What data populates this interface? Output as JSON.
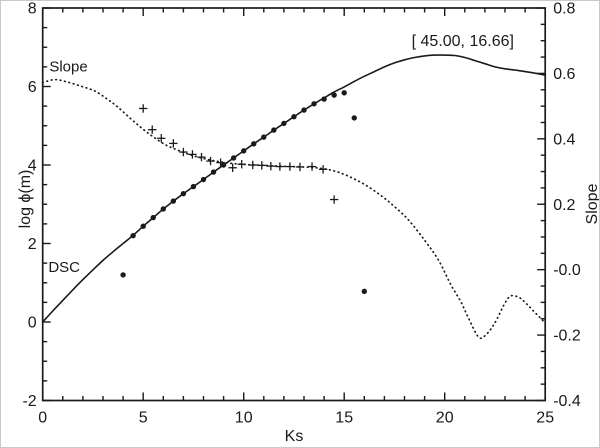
{
  "figure": {
    "background": "#ffffff",
    "border_color": "#c9c9c9",
    "ink_color": "#1a1a1a"
  },
  "chart_data": {
    "type": "line",
    "title": "",
    "xlabel": "Ks",
    "ylabel_left": "log ϕ(m)",
    "ylabel_right": "Slope",
    "grid": false,
    "legend": "none (in-plot text labels)",
    "x_axis": {
      "min": 0,
      "max": 25,
      "minor_step": 1,
      "major_tick_values": [
        0,
        5,
        10,
        15,
        20,
        25
      ],
      "major_tick_labels": [
        "0",
        "5",
        "10",
        "15",
        "20",
        "25"
      ]
    },
    "y_axis_left": {
      "min": -2,
      "max": 8,
      "minor_step": 0.5,
      "major_tick_values": [
        8,
        6,
        4,
        2,
        0,
        -2
      ],
      "major_tick_labels": [
        "8",
        "6",
        "4",
        "2",
        "0",
        "-2"
      ]
    },
    "y_axis_right": {
      "min": -0.4,
      "max": 0.8,
      "minor_step": 0.05,
      "major_tick_values": [
        0.8,
        0.6,
        0.4,
        0.2,
        0.0,
        -0.2,
        -0.4
      ],
      "major_tick_labels": [
        "0.8",
        "0.6",
        "0.4",
        "0.2",
        "-0.0",
        "-0.2",
        "-0.4"
      ]
    },
    "series": [
      {
        "name": "DSC curve",
        "style": "solid-line",
        "axis": "left",
        "points": [
          [
            0,
            0
          ],
          [
            0.5,
            0.28
          ],
          [
            1,
            0.55
          ],
          [
            1.5,
            0.82
          ],
          [
            2,
            1.08
          ],
          [
            2.5,
            1.33
          ],
          [
            3,
            1.57
          ],
          [
            3.5,
            1.79
          ],
          [
            4,
            2.0
          ],
          [
            4.5,
            2.21
          ],
          [
            5,
            2.44
          ],
          [
            5.5,
            2.66
          ],
          [
            6,
            2.88
          ],
          [
            6.5,
            3.08
          ],
          [
            7,
            3.27
          ],
          [
            7.5,
            3.45
          ],
          [
            8,
            3.63
          ],
          [
            8.5,
            3.82
          ],
          [
            9,
            4.0
          ],
          [
            9.5,
            4.18
          ],
          [
            10,
            4.36
          ],
          [
            10.5,
            4.54
          ],
          [
            11,
            4.71
          ],
          [
            11.5,
            4.89
          ],
          [
            12,
            5.06
          ],
          [
            12.5,
            5.23
          ],
          [
            13,
            5.4
          ],
          [
            13.5,
            5.56
          ],
          [
            14,
            5.71
          ],
          [
            14.5,
            5.86
          ],
          [
            15,
            5.99
          ],
          [
            15.5,
            6.13
          ],
          [
            16,
            6.26
          ],
          [
            16.5,
            6.38
          ],
          [
            17,
            6.5
          ],
          [
            17.5,
            6.6
          ],
          [
            18,
            6.68
          ],
          [
            18.5,
            6.74
          ],
          [
            19,
            6.78
          ],
          [
            19.5,
            6.8
          ],
          [
            20,
            6.8
          ],
          [
            20.5,
            6.79
          ],
          [
            21,
            6.74
          ],
          [
            21.5,
            6.66
          ],
          [
            22,
            6.58
          ],
          [
            22.5,
            6.5
          ],
          [
            23,
            6.45
          ],
          [
            23.5,
            6.42
          ],
          [
            24,
            6.38
          ],
          [
            24.5,
            6.34
          ],
          [
            25,
            6.29
          ]
        ]
      },
      {
        "name": "Slope curve",
        "style": "dotted-line",
        "axis": "right",
        "points": [
          [
            0,
            0.572
          ],
          [
            0.6,
            0.581
          ],
          [
            1.2,
            0.574
          ],
          [
            1.9,
            0.561
          ],
          [
            2.6,
            0.546
          ],
          [
            3.2,
            0.522
          ],
          [
            3.7,
            0.499
          ],
          [
            4.3,
            0.466
          ],
          [
            4.9,
            0.434
          ],
          [
            5.5,
            0.406
          ],
          [
            6.1,
            0.382
          ],
          [
            6.7,
            0.366
          ],
          [
            7.3,
            0.352
          ],
          [
            8,
            0.34
          ],
          [
            8.7,
            0.331
          ],
          [
            9.4,
            0.325
          ],
          [
            10.2,
            0.321
          ],
          [
            11,
            0.319
          ],
          [
            12,
            0.316
          ],
          [
            13,
            0.314
          ],
          [
            13.8,
            0.31
          ],
          [
            14.5,
            0.302
          ],
          [
            15.2,
            0.286
          ],
          [
            16,
            0.261
          ],
          [
            16.8,
            0.228
          ],
          [
            17.5,
            0.193
          ],
          [
            18.2,
            0.152
          ],
          [
            19,
            0.09
          ],
          [
            19.7,
            0.028
          ],
          [
            20.3,
            -0.045
          ],
          [
            20.8,
            -0.098
          ],
          [
            21.2,
            -0.15
          ],
          [
            21.7,
            -0.207
          ],
          [
            22.1,
            -0.196
          ],
          [
            22.5,
            -0.162
          ],
          [
            23,
            -0.102
          ],
          [
            23.3,
            -0.08
          ],
          [
            23.7,
            -0.085
          ],
          [
            24,
            -0.1
          ],
          [
            24.4,
            -0.125
          ],
          [
            25,
            -0.163
          ]
        ]
      },
      {
        "name": "slope estimate markers",
        "style": "plus-markers",
        "axis": "left",
        "points": [
          [
            5,
            5.44
          ],
          [
            5.45,
            4.9
          ],
          [
            5.9,
            4.68
          ],
          [
            6.5,
            4.55
          ],
          [
            7,
            4.33
          ],
          [
            7.45,
            4.27
          ],
          [
            7.9,
            4.2
          ],
          [
            8.35,
            4.1
          ],
          [
            8.85,
            4.06
          ],
          [
            9.45,
            3.93
          ],
          [
            9.9,
            4.02
          ],
          [
            10.45,
            4.0
          ],
          [
            10.9,
            3.99
          ],
          [
            11.35,
            3.97
          ],
          [
            11.8,
            3.96
          ],
          [
            12.3,
            3.96
          ],
          [
            12.8,
            3.95
          ],
          [
            13.4,
            3.96
          ],
          [
            13.95,
            3.89
          ],
          [
            14.5,
            3.12
          ]
        ]
      },
      {
        "name": "DSC sample markers",
        "style": "dot-markers",
        "axis": "left",
        "points": [
          [
            4,
            1.2
          ],
          [
            4.5,
            2.2
          ],
          [
            5,
            2.44
          ],
          [
            5.5,
            2.66
          ],
          [
            6,
            2.88
          ],
          [
            6.5,
            3.08
          ],
          [
            7,
            3.27
          ],
          [
            7.5,
            3.45
          ],
          [
            8,
            3.63
          ],
          [
            8.5,
            3.82
          ],
          [
            9,
            4.0
          ],
          [
            9.5,
            4.18
          ],
          [
            10,
            4.36
          ],
          [
            10.5,
            4.54
          ],
          [
            11,
            4.71
          ],
          [
            11.5,
            4.89
          ],
          [
            12,
            5.06
          ],
          [
            12.5,
            5.23
          ],
          [
            13,
            5.4
          ],
          [
            13.5,
            5.56
          ],
          [
            14,
            5.68
          ],
          [
            14.5,
            5.78
          ],
          [
            15,
            5.84
          ],
          [
            15.5,
            5.2
          ],
          [
            16,
            0.78
          ]
        ]
      }
    ],
    "annotations": [
      {
        "id": "slope-curve-label",
        "text": "Slope",
        "x": 0.33,
        "y": 6.38,
        "anchor": "start",
        "font_px": 15
      },
      {
        "id": "dsc-curve-label",
        "text": "DSC",
        "x": 0.28,
        "y": 1.27,
        "anchor": "start",
        "font_px": 15
      },
      {
        "id": "peak-coordinates",
        "text": "[ 45.00, 16.66]",
        "x": 20.9,
        "y": 7.03,
        "anchor": "middle",
        "font_px": 16
      }
    ]
  }
}
